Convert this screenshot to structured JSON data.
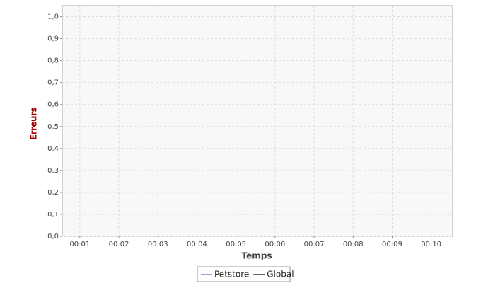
{
  "chart_data": {
    "type": "line",
    "x": [],
    "series": [
      {
        "name": "Petstore",
        "color": "#3a6fc4",
        "values": []
      },
      {
        "name": "Global",
        "color": "#000000",
        "values": []
      }
    ],
    "xlabel": "Temps",
    "ylabel": "Erreurs",
    "xlim": [
      0.55,
      10.55
    ],
    "xticks": [
      {
        "value": 1,
        "label": "00:01"
      },
      {
        "value": 2,
        "label": "00:02"
      },
      {
        "value": 3,
        "label": "00:03"
      },
      {
        "value": 4,
        "label": "00:04"
      },
      {
        "value": 5,
        "label": "00:05"
      },
      {
        "value": 6,
        "label": "00:06"
      },
      {
        "value": 7,
        "label": "00:07"
      },
      {
        "value": 8,
        "label": "00:08"
      },
      {
        "value": 9,
        "label": "00:09"
      },
      {
        "value": 10,
        "label": "00:10"
      }
    ],
    "ylim": [
      0,
      1.05
    ],
    "yticks": [
      {
        "value": 0,
        "label": "0,0"
      },
      {
        "value": 0.1,
        "label": "0,1"
      },
      {
        "value": 0.2,
        "label": "0,2"
      },
      {
        "value": 0.3,
        "label": "0,3"
      },
      {
        "value": 0.4,
        "label": "0,4"
      },
      {
        "value": 0.5,
        "label": "0,5"
      },
      {
        "value": 0.6,
        "label": "0,6"
      },
      {
        "value": 0.7,
        "label": "0,7"
      },
      {
        "value": 0.8,
        "label": "0,8"
      },
      {
        "value": 0.9,
        "label": "0,9"
      },
      {
        "value": 1,
        "label": "1,0"
      }
    ],
    "grid": true,
    "legend": "bottom"
  }
}
